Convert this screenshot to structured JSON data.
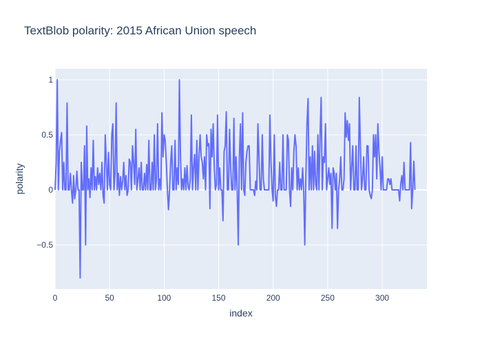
{
  "chart_data": {
    "type": "line",
    "title": "TextBlob polarity: 2015 African Union speech",
    "xlabel": "index",
    "ylabel": "polarity",
    "xlim": [
      0,
      341
    ],
    "ylim": [
      -0.9,
      1.1
    ],
    "x_ticks": [
      0,
      50,
      100,
      150,
      200,
      250,
      300
    ],
    "x_tick_labels": [
      "0",
      "50",
      "100",
      "150",
      "200",
      "250",
      "300"
    ],
    "y_ticks": [
      -0.5,
      0,
      0.5,
      1
    ],
    "y_tick_labels": [
      "−0.5",
      "0",
      "0.5",
      "1"
    ],
    "grid": true,
    "plot_background": "#e5ecf6",
    "line_color": "#636efa",
    "series": [
      {
        "values": [
          0,
          0.25,
          1.0,
          0.0,
          0.35,
          0.45,
          0.52,
          0.0,
          0.25,
          0.0,
          0.0,
          0.79,
          0.0,
          0.0,
          0.15,
          0.0,
          -0.12,
          0.13,
          -0.08,
          0.0,
          0.17,
          0.0,
          0.0,
          -0.8,
          0.25,
          0.0,
          0.0,
          0.4,
          -0.5,
          0.58,
          0.0,
          0.1,
          -0.07,
          0.2,
          0.0,
          0.45,
          0.0,
          0.12,
          0.0,
          0.2,
          0.05,
          0.15,
          0.0,
          0.25,
          -0.05,
          -0.12,
          0.5,
          0.25,
          0.0,
          0.34,
          0.05,
          0.0,
          0.5,
          0.6,
          0.0,
          0.15,
          0.79,
          0.0,
          0.15,
          -0.05,
          0.12,
          0.0,
          0.08,
          0.25,
          0.0,
          0.13,
          -0.05,
          0.0,
          0.28,
          0.25,
          0.0,
          0.4,
          0.25,
          0.05,
          0.55,
          0.0,
          0.1,
          0.2,
          0.0,
          0.25,
          0.0,
          0.0,
          0.15,
          0.0,
          0.23,
          0.0,
          0.45,
          0.0,
          0.0,
          0.25,
          0.0,
          0.5,
          0.0,
          0.1,
          0.6,
          0.0,
          0.1,
          0.0,
          0.7,
          0.3,
          0.5,
          0.45,
          0.25,
          0.0,
          -0.18,
          0.0,
          0.25,
          0.4,
          0.0,
          0.0,
          0.45,
          0.0,
          0.2,
          0.05,
          1.0,
          0.3,
          0.0,
          0.1,
          0.0,
          0.2,
          0.0,
          0.22,
          0.03,
          0.0,
          0.1,
          0.68,
          0.0,
          0.2,
          0.32,
          0.0,
          0.45,
          0.0,
          0.3,
          0.5,
          0.3,
          0.25,
          0.1,
          0.3,
          0.0,
          0.5,
          0.4,
          0.42,
          -0.17,
          0.55,
          0.3,
          0.6,
          0.2,
          0.0,
          0.05,
          0.68,
          0.0,
          0.2,
          0.0,
          0.0,
          -0.28,
          0.35,
          0.4,
          0.71,
          0.0,
          0.0,
          0.55,
          0.2,
          0.0,
          0.0,
          0.65,
          0.0,
          0.3,
          0.0,
          -0.5,
          0.3,
          0.6,
          0.0,
          0.7,
          0.0,
          -0.05,
          0.25,
          0.35,
          0.4,
          0.4,
          0.0,
          0.0,
          0.0,
          0.0,
          -0.05,
          0.08,
          0.0,
          0.6,
          0.3,
          0.0,
          0.0,
          0.5,
          0.1,
          0.0,
          0.0,
          0.0,
          0.0,
          0.0,
          0.68,
          0.25,
          0.0,
          -0.1,
          0.5,
          -0.05,
          -0.15,
          0.0,
          0.0,
          0.25,
          0.0,
          0.0,
          0.5,
          0.0,
          0.0,
          0.0,
          0.5,
          0.45,
          0.0,
          -0.15,
          0.2,
          0.0,
          0.35,
          0.5,
          0.4,
          0.0,
          0.2,
          0.0,
          0.1,
          0.0,
          0.2,
          0.0,
          -0.5,
          0.12,
          0.6,
          0.83,
          0.0,
          0.3,
          0.0,
          0.4,
          0.0,
          0.35,
          0.05,
          0.0,
          0.5,
          0.0,
          0.5,
          0.84,
          0.0,
          0.3,
          0.25,
          0.6,
          0.0,
          0.1,
          0.2,
          0.05,
          0.15,
          -0.35,
          0.2,
          0.15,
          0.0,
          0.15,
          -0.35,
          0.0,
          0.1,
          0.3,
          0.0,
          0.0,
          0.1,
          0.7,
          0.48,
          0.63,
          0.45,
          0.6,
          0.0,
          0.2,
          0.4,
          0.0,
          0.0,
          0.4,
          0.0,
          0.0,
          0.84,
          0.4,
          0.0,
          0.1,
          0.3,
          0.0,
          0.0,
          0.4,
          0.4,
          0.0,
          -0.05,
          -0.08,
          0.0,
          0.5,
          0.3,
          0.5,
          0.1,
          0.6,
          0.35,
          0.2,
          0.0,
          0.3,
          0.0,
          0.0,
          0.0,
          0.0,
          0.1,
          0.1,
          0.05,
          0.1,
          0.0,
          0.0,
          0.0,
          0.0,
          0.0,
          0.0,
          0.0,
          -0.1,
          0.05,
          0.13,
          0.0,
          0.25,
          0.0,
          0.0,
          0.0,
          0.0,
          0.0,
          0.43,
          -0.17,
          0.0,
          0.26,
          0.0
        ]
      }
    ]
  }
}
